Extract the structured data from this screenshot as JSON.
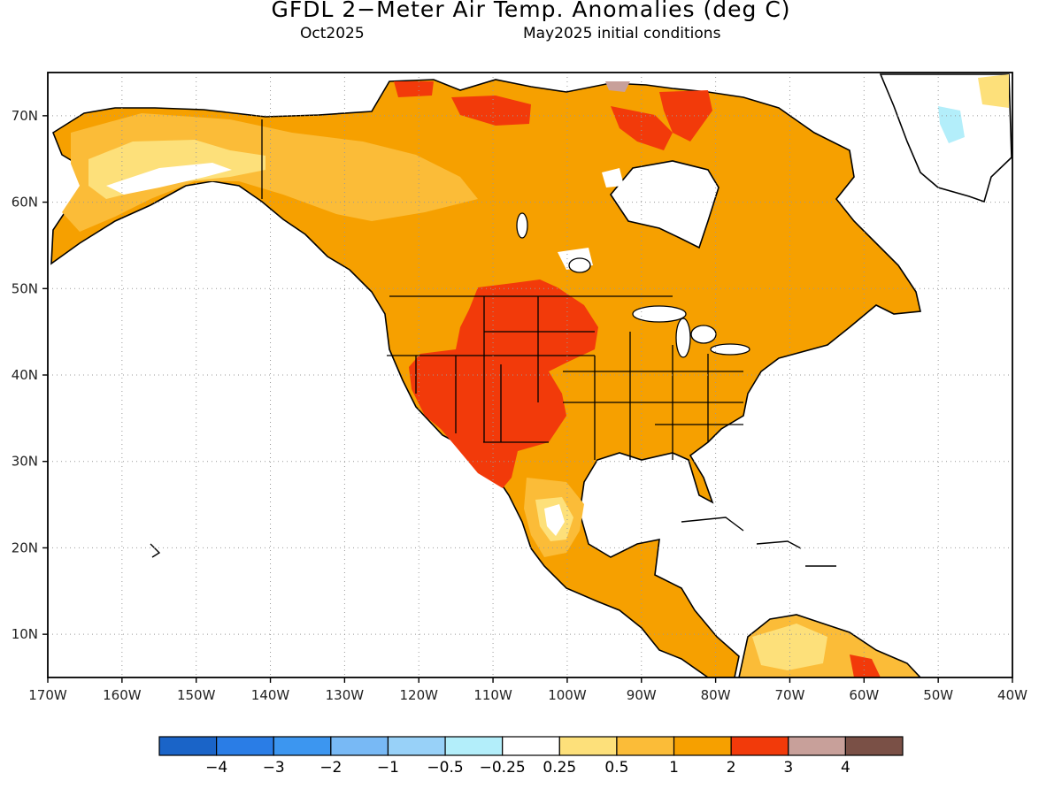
{
  "title": "GFDL 2−Meter Air Temp. Anomalies (deg C)",
  "subtitle_left": "Oct2025",
  "subtitle_right": "May2025 initial conditions",
  "map": {
    "projection": "lat-lon",
    "lon_range": [
      -170,
      -40
    ],
    "lat_range": [
      5,
      75
    ],
    "lon_ticks": [
      {
        "value": -170,
        "label": "170W"
      },
      {
        "value": -160,
        "label": "160W"
      },
      {
        "value": -150,
        "label": "150W"
      },
      {
        "value": -140,
        "label": "140W"
      },
      {
        "value": -130,
        "label": "130W"
      },
      {
        "value": -120,
        "label": "120W"
      },
      {
        "value": -110,
        "label": "110W"
      },
      {
        "value": -100,
        "label": "100W"
      },
      {
        "value": -90,
        "label": "90W"
      },
      {
        "value": -80,
        "label": "80W"
      },
      {
        "value": -70,
        "label": "70W"
      },
      {
        "value": -60,
        "label": "60W"
      },
      {
        "value": -50,
        "label": "50W"
      },
      {
        "value": -40,
        "label": "40W"
      }
    ],
    "lat_ticks": [
      {
        "value": 10,
        "label": "10N"
      },
      {
        "value": 20,
        "label": "20N"
      },
      {
        "value": 30,
        "label": "30N"
      },
      {
        "value": 40,
        "label": "40N"
      },
      {
        "value": 50,
        "label": "50N"
      },
      {
        "value": 60,
        "label": "60N"
      },
      {
        "value": 70,
        "label": "70N"
      }
    ],
    "grid": "dotted"
  },
  "colorbar": {
    "colors": [
      "#1a64c8",
      "#2a7de6",
      "#3c96f0",
      "#78b9f5",
      "#98d1f8",
      "#b3eefa",
      "#ffffff",
      "#fde07a",
      "#fbbc38",
      "#f6a000",
      "#f23a0a",
      "#c8a09a",
      "#7a5046"
    ],
    "labels": [
      "−4",
      "−3",
      "−2",
      "−1",
      "−0.5",
      "−0.25",
      "0.25",
      "0.5",
      "1",
      "2",
      "3",
      "4"
    ]
  },
  "legend_units": "deg C"
}
